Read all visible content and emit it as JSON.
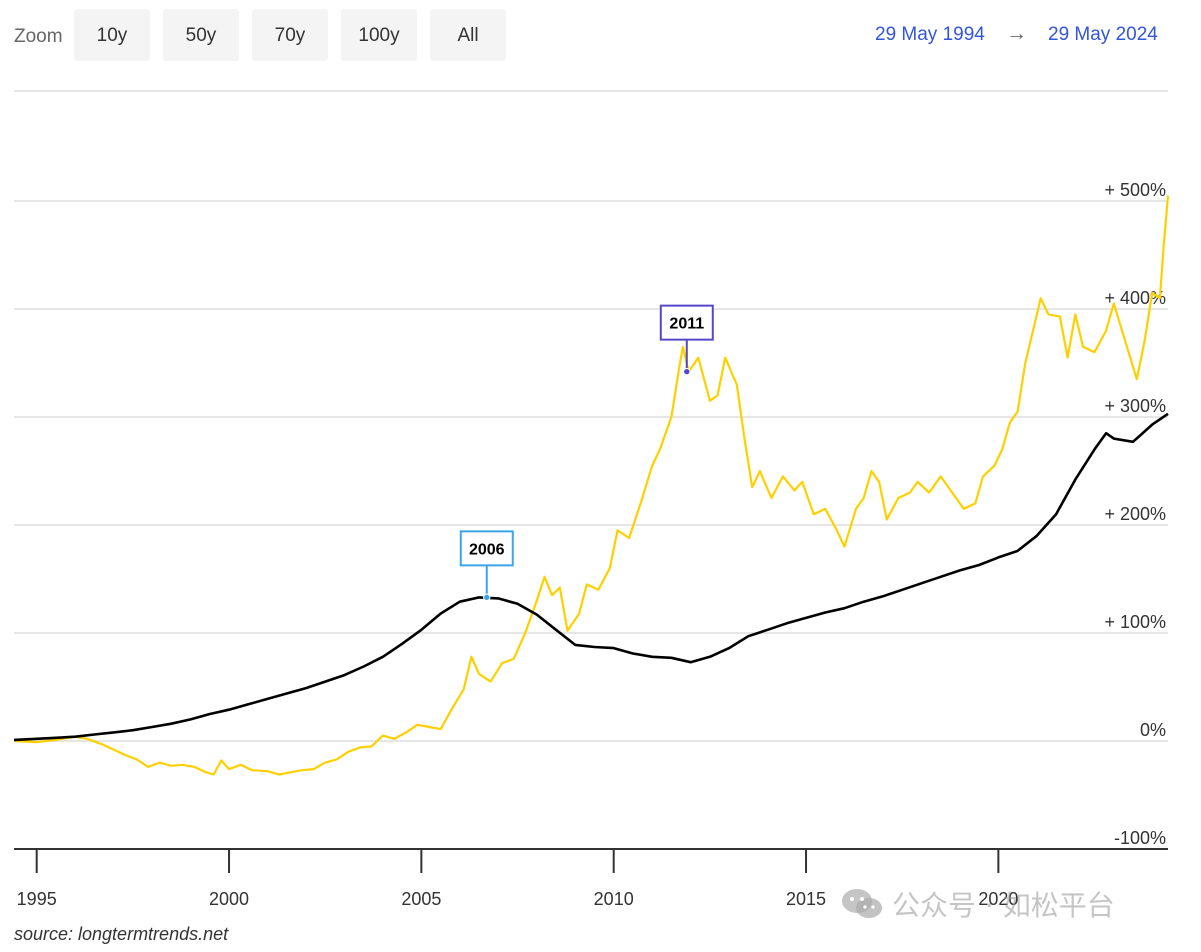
{
  "toolbar": {
    "zoom_label": "Zoom",
    "buttons": [
      "10y",
      "50y",
      "70y",
      "100y",
      "All"
    ],
    "range_start": "29 May 1994",
    "range_arrow": "→",
    "range_end": "29 May 2024"
  },
  "source": "source: longtermtrends.net",
  "watermark": {
    "icon": "wechat-icon",
    "text": "公众号 · 如松平台"
  },
  "colors": {
    "gold": "#ffd000",
    "housing": "#000000",
    "annotation_2006": "#3aa6e8",
    "annotation_2011": "#5548c8",
    "date_link": "#3355dd"
  },
  "chart_data": {
    "type": "line",
    "title": "",
    "xlabel": "",
    "ylabel": "",
    "x_range": [
      1994.41,
      2024.41
    ],
    "ylim": [
      -100,
      540
    ],
    "x_ticks": [
      {
        "value": 1995,
        "label": "1995"
      },
      {
        "value": 2000,
        "label": "2000"
      },
      {
        "value": 2005,
        "label": "2005"
      },
      {
        "value": 2010,
        "label": "2010"
      },
      {
        "value": 2015,
        "label": "2015"
      },
      {
        "value": 2020,
        "label": "2020"
      }
    ],
    "y_ticks": [
      {
        "value": 500,
        "label": "+ 500%"
      },
      {
        "value": 400,
        "label": "+ 400%"
      },
      {
        "value": 300,
        "label": "+ 300%"
      },
      {
        "value": 200,
        "label": "+ 200%"
      },
      {
        "value": 100,
        "label": "+ 100%"
      },
      {
        "value": 0,
        "label": "0%"
      },
      {
        "value": -100,
        "label": "-100%"
      }
    ],
    "grid": true,
    "annotations": [
      {
        "label": "2006",
        "x": 2006.7,
        "y": 133,
        "color": "#3aa6e8"
      },
      {
        "label": "2011",
        "x": 2011.9,
        "y": 342,
        "color": "#5548c8"
      }
    ],
    "series": [
      {
        "color": "#ffd000",
        "points": [
          [
            1994.41,
            0
          ],
          [
            1995.0,
            -1
          ],
          [
            1995.5,
            1
          ],
          [
            1996.0,
            4
          ],
          [
            1996.3,
            2
          ],
          [
            1996.7,
            -3
          ],
          [
            1997.0,
            -8
          ],
          [
            1997.3,
            -13
          ],
          [
            1997.6,
            -17
          ],
          [
            1997.9,
            -24
          ],
          [
            1998.2,
            -20
          ],
          [
            1998.5,
            -23
          ],
          [
            1998.8,
            -22
          ],
          [
            1999.1,
            -24
          ],
          [
            1999.4,
            -29
          ],
          [
            1999.6,
            -31
          ],
          [
            1999.8,
            -18
          ],
          [
            2000.0,
            -26
          ],
          [
            2000.3,
            -22
          ],
          [
            2000.6,
            -27
          ],
          [
            2001.0,
            -28
          ],
          [
            2001.3,
            -31
          ],
          [
            2001.6,
            -29
          ],
          [
            2001.9,
            -27
          ],
          [
            2002.2,
            -26
          ],
          [
            2002.5,
            -20
          ],
          [
            2002.8,
            -17
          ],
          [
            2003.1,
            -10
          ],
          [
            2003.4,
            -6
          ],
          [
            2003.7,
            -5
          ],
          [
            2004.0,
            5
          ],
          [
            2004.3,
            2
          ],
          [
            2004.6,
            8
          ],
          [
            2004.9,
            15
          ],
          [
            2005.2,
            13
          ],
          [
            2005.5,
            11
          ],
          [
            2005.8,
            30
          ],
          [
            2006.1,
            48
          ],
          [
            2006.3,
            78
          ],
          [
            2006.5,
            62
          ],
          [
            2006.8,
            55
          ],
          [
            2007.1,
            72
          ],
          [
            2007.4,
            76
          ],
          [
            2007.7,
            100
          ],
          [
            2008.0,
            130
          ],
          [
            2008.2,
            152
          ],
          [
            2008.4,
            135
          ],
          [
            2008.6,
            142
          ],
          [
            2008.8,
            102
          ],
          [
            2009.1,
            118
          ],
          [
            2009.3,
            145
          ],
          [
            2009.6,
            140
          ],
          [
            2009.9,
            160
          ],
          [
            2010.1,
            195
          ],
          [
            2010.4,
            188
          ],
          [
            2010.7,
            220
          ],
          [
            2011.0,
            255
          ],
          [
            2011.2,
            270
          ],
          [
            2011.5,
            300
          ],
          [
            2011.7,
            345
          ],
          [
            2011.8,
            365
          ],
          [
            2011.95,
            342
          ],
          [
            2012.2,
            355
          ],
          [
            2012.5,
            315
          ],
          [
            2012.7,
            320
          ],
          [
            2012.9,
            355
          ],
          [
            2013.2,
            330
          ],
          [
            2013.4,
            280
          ],
          [
            2013.6,
            235
          ],
          [
            2013.8,
            250
          ],
          [
            2014.1,
            225
          ],
          [
            2014.4,
            245
          ],
          [
            2014.7,
            232
          ],
          [
            2014.9,
            240
          ],
          [
            2015.2,
            210
          ],
          [
            2015.5,
            215
          ],
          [
            2015.8,
            195
          ],
          [
            2016.0,
            180
          ],
          [
            2016.3,
            215
          ],
          [
            2016.5,
            225
          ],
          [
            2016.7,
            250
          ],
          [
            2016.9,
            240
          ],
          [
            2017.1,
            205
          ],
          [
            2017.4,
            225
          ],
          [
            2017.7,
            230
          ],
          [
            2017.9,
            240
          ],
          [
            2018.2,
            230
          ],
          [
            2018.5,
            245
          ],
          [
            2018.8,
            230
          ],
          [
            2019.1,
            215
          ],
          [
            2019.4,
            220
          ],
          [
            2019.6,
            245
          ],
          [
            2019.9,
            255
          ],
          [
            2020.1,
            270
          ],
          [
            2020.3,
            295
          ],
          [
            2020.5,
            305
          ],
          [
            2020.7,
            350
          ],
          [
            2020.9,
            380
          ],
          [
            2021.1,
            410
          ],
          [
            2021.3,
            395
          ],
          [
            2021.6,
            393
          ],
          [
            2021.8,
            355
          ],
          [
            2022.0,
            395
          ],
          [
            2022.2,
            365
          ],
          [
            2022.5,
            360
          ],
          [
            2022.8,
            380
          ],
          [
            2023.0,
            405
          ],
          [
            2023.3,
            370
          ],
          [
            2023.6,
            335
          ],
          [
            2023.8,
            370
          ],
          [
            2024.0,
            415
          ],
          [
            2024.2,
            410
          ],
          [
            2024.3,
            460
          ],
          [
            2024.41,
            505
          ]
        ]
      },
      {
        "color": "#000000",
        "points": [
          [
            1994.41,
            1
          ],
          [
            1995.0,
            2
          ],
          [
            1995.5,
            3
          ],
          [
            1996.0,
            4
          ],
          [
            1996.5,
            6
          ],
          [
            1997.0,
            8
          ],
          [
            1997.5,
            10
          ],
          [
            1998.0,
            13
          ],
          [
            1998.5,
            16
          ],
          [
            1999.0,
            20
          ],
          [
            1999.5,
            25
          ],
          [
            2000.0,
            29
          ],
          [
            2000.5,
            34
          ],
          [
            2001.0,
            39
          ],
          [
            2001.5,
            44
          ],
          [
            2002.0,
            49
          ],
          [
            2002.5,
            55
          ],
          [
            2003.0,
            61
          ],
          [
            2003.5,
            69
          ],
          [
            2004.0,
            78
          ],
          [
            2004.5,
            90
          ],
          [
            2005.0,
            103
          ],
          [
            2005.5,
            118
          ],
          [
            2006.0,
            129
          ],
          [
            2006.5,
            133
          ],
          [
            2007.0,
            132
          ],
          [
            2007.5,
            127
          ],
          [
            2008.0,
            117
          ],
          [
            2008.5,
            103
          ],
          [
            2009.0,
            89
          ],
          [
            2009.5,
            87
          ],
          [
            2010.0,
            86
          ],
          [
            2010.5,
            81
          ],
          [
            2011.0,
            78
          ],
          [
            2011.5,
            77
          ],
          [
            2012.0,
            73
          ],
          [
            2012.5,
            78
          ],
          [
            2013.0,
            86
          ],
          [
            2013.5,
            97
          ],
          [
            2014.0,
            103
          ],
          [
            2014.5,
            109
          ],
          [
            2015.0,
            114
          ],
          [
            2015.5,
            119
          ],
          [
            2016.0,
            123
          ],
          [
            2016.5,
            129
          ],
          [
            2017.0,
            134
          ],
          [
            2017.5,
            140
          ],
          [
            2018.0,
            146
          ],
          [
            2018.5,
            152
          ],
          [
            2019.0,
            158
          ],
          [
            2019.5,
            163
          ],
          [
            2020.0,
            170
          ],
          [
            2020.5,
            176
          ],
          [
            2021.0,
            190
          ],
          [
            2021.5,
            210
          ],
          [
            2022.0,
            242
          ],
          [
            2022.5,
            270
          ],
          [
            2022.8,
            285
          ],
          [
            2023.0,
            280
          ],
          [
            2023.5,
            277
          ],
          [
            2024.0,
            293
          ],
          [
            2024.41,
            303
          ]
        ]
      }
    ]
  }
}
